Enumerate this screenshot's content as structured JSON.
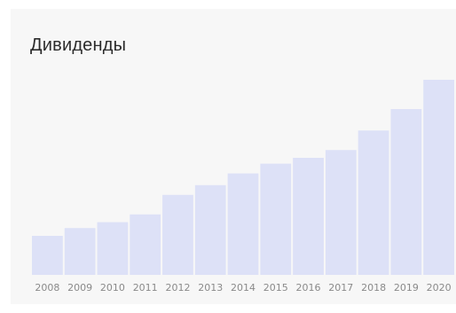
{
  "title": "Дивиденды",
  "colors": {
    "card_background": "#f7f7f7",
    "bar": "#dde1f7",
    "tick_text": "#8a8a8a",
    "title_text": "#2b2b2b"
  },
  "chart_data": {
    "type": "bar",
    "title": "Дивиденды",
    "xlabel": "",
    "ylabel": "",
    "grid": false,
    "legend": "none",
    "categories": [
      "2008",
      "2009",
      "2010",
      "2011",
      "2012",
      "2013",
      "2014",
      "2015",
      "2016",
      "2017",
      "2018",
      "2019",
      "2020"
    ],
    "values": [
      20,
      24,
      27,
      31,
      41,
      46,
      52,
      57,
      60,
      64,
      74,
      85,
      100
    ],
    "ylim": [
      0,
      100
    ]
  }
}
